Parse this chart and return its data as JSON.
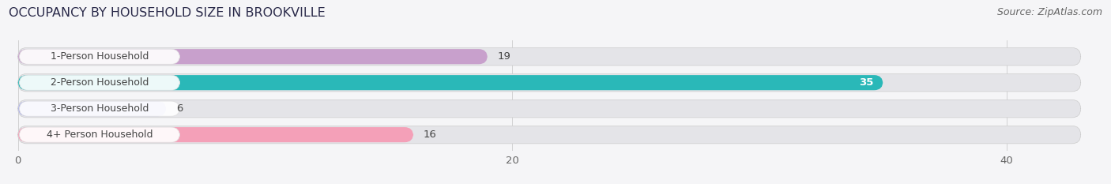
{
  "title": "OCCUPANCY BY HOUSEHOLD SIZE IN BROOKVILLE",
  "source": "Source: ZipAtlas.com",
  "categories": [
    "1-Person Household",
    "2-Person Household",
    "3-Person Household",
    "4+ Person Household"
  ],
  "values": [
    19,
    35,
    6,
    16
  ],
  "bar_colors": [
    "#c8a0cc",
    "#2ab8b8",
    "#b0b4e8",
    "#f4a0b8"
  ],
  "bg_bar_color": "#e4e4e8",
  "label_box_color": "#ffffff",
  "xlim_max": 43,
  "xticks": [
    0,
    20,
    40
  ],
  "label_inside_color": [
    "#333333",
    "#ffffff",
    "#333333",
    "#333333"
  ],
  "title_fontsize": 11.5,
  "source_fontsize": 9,
  "tick_fontsize": 9.5,
  "bar_label_fontsize": 9.5,
  "category_fontsize": 9,
  "figsize": [
    14.06,
    2.33
  ],
  "dpi": 100,
  "bg_color": "#f5f5f7"
}
